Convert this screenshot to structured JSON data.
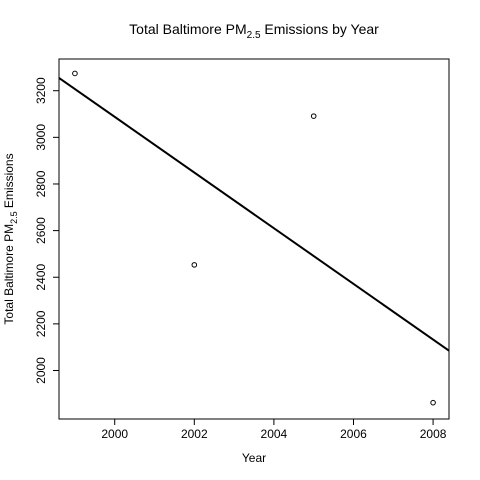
{
  "chart_data": {
    "type": "scatter",
    "title": {
      "prefix": "Total Baltimore PM",
      "subscript": "2.5",
      "suffix": " Emissions by Year"
    },
    "xlabel": "Year",
    "ylabel": {
      "prefix": "Total Baltimore  PM",
      "subscript": "2.5",
      "suffix": " Emissions"
    },
    "xlim": [
      1998.6,
      2008.4
    ],
    "ylim": [
      1792,
      3336
    ],
    "xticks": [
      2000,
      2002,
      2004,
      2006,
      2008
    ],
    "yticks": [
      2000,
      2200,
      2400,
      2600,
      2800,
      3000,
      3200
    ],
    "points": {
      "x": [
        1999,
        2002,
        2005,
        2008
      ],
      "y": [
        3274,
        2453,
        3091,
        1862
      ]
    },
    "regression_line": {
      "x": [
        1998.6,
        2008.4
      ],
      "y": [
        3255,
        2085
      ]
    },
    "grid": false,
    "legend": "none"
  }
}
